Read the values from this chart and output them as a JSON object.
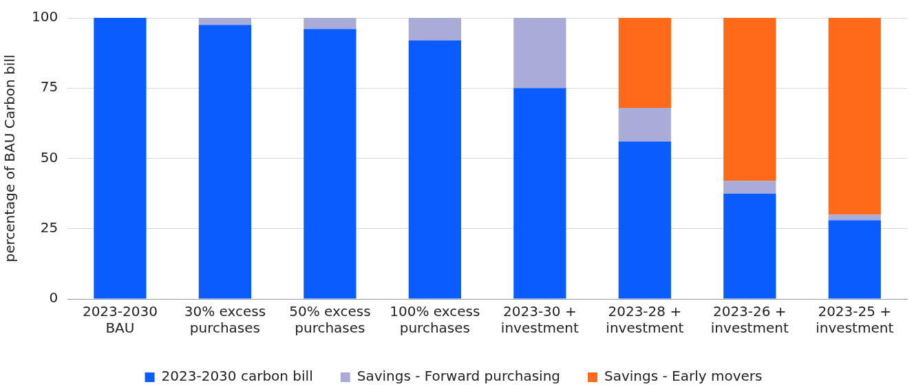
{
  "chart_data": {
    "type": "bar",
    "stacked": true,
    "ylabel": "percentage of BAU Carbon bill",
    "categories": [
      "2023-2030 BAU",
      "30% excess purchases",
      "50% excess purchases",
      "100% excess purchases",
      "2023-30 + investment",
      "2023-28 + investment",
      "2023-26 + investment",
      "2023-25 + investment"
    ],
    "series": [
      {
        "name": "2023-2030 carbon bill",
        "color": "#0a5cff",
        "values": [
          100,
          97.5,
          96,
          92,
          75,
          56,
          37.5,
          28
        ]
      },
      {
        "name": "Savings - Forward purchasing",
        "color": "#a9acd6",
        "values": [
          0,
          2.5,
          4,
          8,
          25,
          12,
          4.5,
          2
        ]
      },
      {
        "name": "Savings - Early movers",
        "color": "#ff6a1a",
        "values": [
          0,
          0,
          0,
          0,
          0,
          32,
          58,
          70
        ]
      }
    ],
    "ylim": [
      0,
      100
    ],
    "yticks": [
      0,
      25,
      50,
      75,
      100
    ],
    "grid": "y",
    "legend": "bottom"
  }
}
